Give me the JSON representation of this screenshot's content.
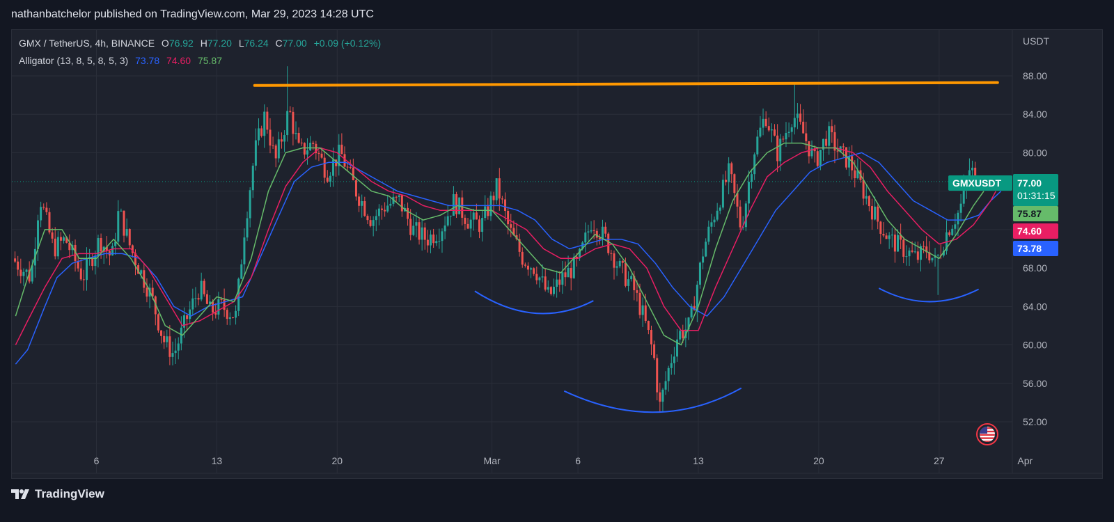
{
  "header": {
    "publisher_line": "nathanbatchelor published on TradingView.com, Mar 29, 2023 14:28 UTC"
  },
  "legend": {
    "symbol": "GMX / TetherUS, 4h, BINANCE",
    "o_label": "O",
    "o_value": "76.92",
    "h_label": "H",
    "h_value": "77.20",
    "l_label": "L",
    "l_value": "76.24",
    "c_label": "C",
    "c_value": "77.00",
    "change": "+0.09 (+0.12%)",
    "indicator": "Alligator (13, 8, 5, 8, 5, 3)",
    "jaw": "73.78",
    "teeth": "74.60",
    "lips": "75.87"
  },
  "price_scale": {
    "currency": "USDT"
  },
  "tags": {
    "symbol_tag": "GMXUSDT",
    "last_price": "77.00",
    "countdown": "01:31:15",
    "lips": "75.87",
    "teeth": "74.60",
    "jaw": "73.78"
  },
  "colors": {
    "up": "#26a69a",
    "down": "#ef5350",
    "jaw": "#2962ff",
    "teeth": "#e91e63",
    "lips": "#66bb6a",
    "resistance": "#ff9800",
    "arc": "#2962ff"
  },
  "footer": {
    "brand": "TradingView"
  },
  "chart_data": {
    "type": "candlestick",
    "title": "GMX / TetherUS, 4h, BINANCE",
    "ylabel": "USDT",
    "ylim": [
      49.5,
      92
    ],
    "yticks": [
      52,
      56,
      60,
      64,
      68,
      72,
      76,
      80,
      84,
      88
    ],
    "ytick_labels": [
      "52.00",
      "56.00",
      "60.00",
      "64.00",
      "68.00",
      "",
      "",
      "80.00",
      "84.00",
      "88.00"
    ],
    "xlim": [
      0,
      58.1
    ],
    "x_unit": "days since Feb 1, 2023",
    "xticks": [
      {
        "x": 5,
        "label": "6"
      },
      {
        "x": 12,
        "label": "13"
      },
      {
        "x": 19,
        "label": "20"
      },
      {
        "x": 28,
        "label": "Mar"
      },
      {
        "x": 33,
        "label": "6"
      },
      {
        "x": 40,
        "label": "13"
      },
      {
        "x": 47,
        "label": "20"
      },
      {
        "x": 54,
        "label": "27"
      },
      {
        "x": 59,
        "label": "Apr"
      }
    ],
    "price_path": [
      [
        0.1,
        69
      ],
      [
        1.2,
        67
      ],
      [
        1.7,
        75.5
      ],
      [
        2.5,
        70
      ],
      [
        3.2,
        71
      ],
      [
        4.2,
        67
      ],
      [
        5.2,
        71
      ],
      [
        5.9,
        69
      ],
      [
        6.3,
        74
      ],
      [
        7.0,
        70
      ],
      [
        8.2,
        65
      ],
      [
        8.9,
        60.5
      ],
      [
        9.5,
        59
      ],
      [
        10.3,
        63
      ],
      [
        11.0,
        66
      ],
      [
        11.6,
        63.5
      ],
      [
        12.3,
        64
      ],
      [
        13.1,
        63
      ],
      [
        13.6,
        72
      ],
      [
        14.2,
        80
      ],
      [
        14.8,
        84
      ],
      [
        15.4,
        79
      ],
      [
        16.2,
        84.5
      ],
      [
        16.8,
        80
      ],
      [
        17.6,
        81
      ],
      [
        18.4,
        78
      ],
      [
        19.2,
        80
      ],
      [
        20.1,
        76
      ],
      [
        21.0,
        73
      ],
      [
        21.8,
        74.5
      ],
      [
        22.6,
        75
      ],
      [
        23.4,
        72
      ],
      [
        24.2,
        71
      ],
      [
        25.0,
        72
      ],
      [
        25.8,
        75
      ],
      [
        26.6,
        73
      ],
      [
        27.4,
        72.5
      ],
      [
        28.3,
        76.5
      ],
      [
        29.0,
        72
      ],
      [
        29.8,
        69
      ],
      [
        30.5,
        68
      ],
      [
        31.3,
        65
      ],
      [
        32.1,
        67
      ],
      [
        33.0,
        68.5
      ],
      [
        33.8,
        73
      ],
      [
        34.6,
        71
      ],
      [
        35.4,
        68
      ],
      [
        36.2,
        66
      ],
      [
        36.8,
        63
      ],
      [
        37.4,
        59
      ],
      [
        37.75,
        53.5
      ],
      [
        38.2,
        57
      ],
      [
        38.8,
        61
      ],
      [
        39.5,
        62
      ],
      [
        40.3,
        70
      ],
      [
        41.0,
        74
      ],
      [
        41.8,
        78
      ],
      [
        42.5,
        72
      ],
      [
        43.2,
        80
      ],
      [
        43.9,
        84
      ],
      [
        44.6,
        80
      ],
      [
        45.5,
        84
      ],
      [
        46.1,
        82
      ],
      [
        46.8,
        79
      ],
      [
        47.5,
        82
      ],
      [
        48.2,
        80
      ],
      [
        48.8,
        79
      ],
      [
        49.6,
        76
      ],
      [
        50.4,
        73
      ],
      [
        51.1,
        71
      ],
      [
        51.9,
        70
      ],
      [
        52.7,
        69
      ],
      [
        53.3,
        70
      ],
      [
        53.8,
        68.5
      ],
      [
        54.5,
        72
      ],
      [
        55.2,
        74
      ],
      [
        55.8,
        78.5
      ],
      [
        56.2,
        77
      ]
    ],
    "alligator": {
      "jaw": [
        [
          0.3,
          58
        ],
        [
          1.0,
          59.5
        ],
        [
          2.0,
          64
        ],
        [
          2.7,
          67
        ],
        [
          3.6,
          68.5
        ],
        [
          4.5,
          69
        ],
        [
          5.5,
          69.5
        ],
        [
          6.5,
          69.5
        ],
        [
          7.5,
          69
        ],
        [
          8.5,
          67
        ],
        [
          9.5,
          64
        ],
        [
          10.5,
          63
        ],
        [
          11.5,
          64
        ],
        [
          12.5,
          64.5
        ],
        [
          13.5,
          65
        ],
        [
          14.5,
          69
        ],
        [
          15.5,
          73
        ],
        [
          16.5,
          77
        ],
        [
          17.5,
          78.5
        ],
        [
          18.5,
          79
        ],
        [
          19.5,
          79
        ],
        [
          20.5,
          78
        ],
        [
          21.5,
          77
        ],
        [
          22.5,
          76
        ],
        [
          23.5,
          75.5
        ],
        [
          24.5,
          75
        ],
        [
          25.5,
          74.5
        ],
        [
          26.5,
          74.5
        ],
        [
          27.5,
          74.5
        ],
        [
          28.5,
          74.5
        ],
        [
          29.5,
          74
        ],
        [
          30.5,
          73
        ],
        [
          31.5,
          71
        ],
        [
          32.5,
          70
        ],
        [
          33.5,
          70.5
        ],
        [
          34.5,
          71
        ],
        [
          35.5,
          71
        ],
        [
          36.5,
          70.5
        ],
        [
          37.5,
          68.5
        ],
        [
          38.5,
          66
        ],
        [
          39.5,
          64
        ],
        [
          40.5,
          63
        ],
        [
          41.5,
          65
        ],
        [
          42.5,
          68
        ],
        [
          43.5,
          71
        ],
        [
          44.5,
          74
        ],
        [
          45.5,
          76
        ],
        [
          46.5,
          78
        ],
        [
          47.5,
          79
        ],
        [
          48.5,
          79.5
        ],
        [
          49.5,
          80
        ],
        [
          50.5,
          79
        ],
        [
          51.5,
          77
        ],
        [
          52.5,
          75
        ],
        [
          53.5,
          74
        ],
        [
          54.5,
          73
        ],
        [
          55.5,
          73
        ],
        [
          56.3,
          73.5
        ],
        [
          57.0,
          75
        ],
        [
          57.6,
          76
        ]
      ],
      "teeth": [
        [
          0.3,
          60
        ],
        [
          1.0,
          62.5
        ],
        [
          2.0,
          66
        ],
        [
          3.0,
          69
        ],
        [
          4.0,
          69.5
        ],
        [
          5.0,
          69.5
        ],
        [
          6.0,
          70
        ],
        [
          7.0,
          70
        ],
        [
          8.0,
          68
        ],
        [
          9.0,
          65
        ],
        [
          10.0,
          62
        ],
        [
          11.0,
          62.5
        ],
        [
          12.0,
          63.5
        ],
        [
          13.0,
          64.5
        ],
        [
          14.0,
          67
        ],
        [
          15.0,
          72
        ],
        [
          16.0,
          76.5
        ],
        [
          17.0,
          79
        ],
        [
          18.0,
          80.5
        ],
        [
          19.0,
          80
        ],
        [
          20.0,
          78.5
        ],
        [
          21.0,
          77
        ],
        [
          22.0,
          76
        ],
        [
          23.0,
          75.5
        ],
        [
          24.0,
          74.5
        ],
        [
          25.0,
          74
        ],
        [
          26.0,
          74
        ],
        [
          27.0,
          74
        ],
        [
          28.0,
          74
        ],
        [
          29.0,
          73
        ],
        [
          30.0,
          72
        ],
        [
          31.0,
          70
        ],
        [
          32.0,
          69
        ],
        [
          33.0,
          69
        ],
        [
          34.0,
          70
        ],
        [
          35.0,
          70.5
        ],
        [
          36.0,
          70
        ],
        [
          37.0,
          68
        ],
        [
          38.0,
          64
        ],
        [
          39.0,
          61.5
        ],
        [
          40.0,
          61.5
        ],
        [
          41.0,
          66
        ],
        [
          42.0,
          70
        ],
        [
          43.0,
          74
        ],
        [
          44.0,
          77.5
        ],
        [
          45.0,
          79
        ],
        [
          46.0,
          80
        ],
        [
          47.0,
          80.5
        ],
        [
          48.0,
          80.5
        ],
        [
          49.0,
          80
        ],
        [
          50.0,
          78.5
        ],
        [
          51.0,
          76
        ],
        [
          52.0,
          74
        ],
        [
          53.0,
          72
        ],
        [
          54.0,
          70.5
        ],
        [
          55.0,
          71
        ],
        [
          56.0,
          72.5
        ],
        [
          57.0,
          75
        ],
        [
          57.3,
          76
        ]
      ],
      "lips": [
        [
          0.3,
          63
        ],
        [
          1.0,
          67
        ],
        [
          2.0,
          72
        ],
        [
          3.0,
          72
        ],
        [
          4.0,
          69
        ],
        [
          5.0,
          69
        ],
        [
          6.0,
          71
        ],
        [
          7.0,
          69
        ],
        [
          8.0,
          66
        ],
        [
          9.0,
          62
        ],
        [
          10.0,
          61
        ],
        [
          11.0,
          63
        ],
        [
          12.0,
          65
        ],
        [
          13.0,
          64.5
        ],
        [
          14.0,
          69
        ],
        [
          15.0,
          76
        ],
        [
          16.0,
          80
        ],
        [
          17.0,
          80.5
        ],
        [
          18.0,
          80.5
        ],
        [
          19.0,
          79
        ],
        [
          20.0,
          77.5
        ],
        [
          21.0,
          76
        ],
        [
          22.0,
          75.5
        ],
        [
          23.0,
          74
        ],
        [
          24.0,
          73
        ],
        [
          25.0,
          73.5
        ],
        [
          26.0,
          74.5
        ],
        [
          27.0,
          74
        ],
        [
          28.0,
          74
        ],
        [
          29.0,
          72
        ],
        [
          30.0,
          70
        ],
        [
          31.0,
          68
        ],
        [
          32.0,
          67.5
        ],
        [
          33.0,
          69.5
        ],
        [
          34.0,
          71.5
        ],
        [
          35.0,
          70.5
        ],
        [
          36.0,
          68
        ],
        [
          37.0,
          64.5
        ],
        [
          38.0,
          61
        ],
        [
          39.0,
          60
        ],
        [
          40.0,
          64
        ],
        [
          41.0,
          70
        ],
        [
          42.0,
          75
        ],
        [
          43.0,
          78
        ],
        [
          44.0,
          80
        ],
        [
          45.0,
          81
        ],
        [
          46.0,
          81
        ],
        [
          47.0,
          80.5
        ],
        [
          48.0,
          80.5
        ],
        [
          49.0,
          79
        ],
        [
          50.0,
          76
        ],
        [
          51.0,
          73
        ],
        [
          52.0,
          71
        ],
        [
          53.0,
          70
        ],
        [
          54.0,
          69
        ],
        [
          55.0,
          71.5
        ],
        [
          56.0,
          74.5
        ],
        [
          56.6,
          76
        ]
      ]
    },
    "annotations": {
      "resistance_line": {
        "x_start": 14.2,
        "x_end": 57.4,
        "y_start": 87.0,
        "y_end": 87.3
      },
      "arcs": [
        {
          "points": [
            [
              27.0,
              65.6
            ],
            [
              30.5,
              63.3
            ],
            [
              33.9,
              64.6
            ]
          ]
        },
        {
          "points": [
            [
              32.2,
              55.2
            ],
            [
              37.5,
              53.0
            ],
            [
              42.5,
              55.5
            ]
          ]
        },
        {
          "points": [
            [
              50.5,
              65.9
            ],
            [
              53.4,
              64.5
            ],
            [
              56.3,
              65.8
            ]
          ]
        }
      ]
    },
    "last_price": 77.0,
    "lips_last": 75.87,
    "teeth_last": 74.6,
    "jaw_last": 73.78
  }
}
